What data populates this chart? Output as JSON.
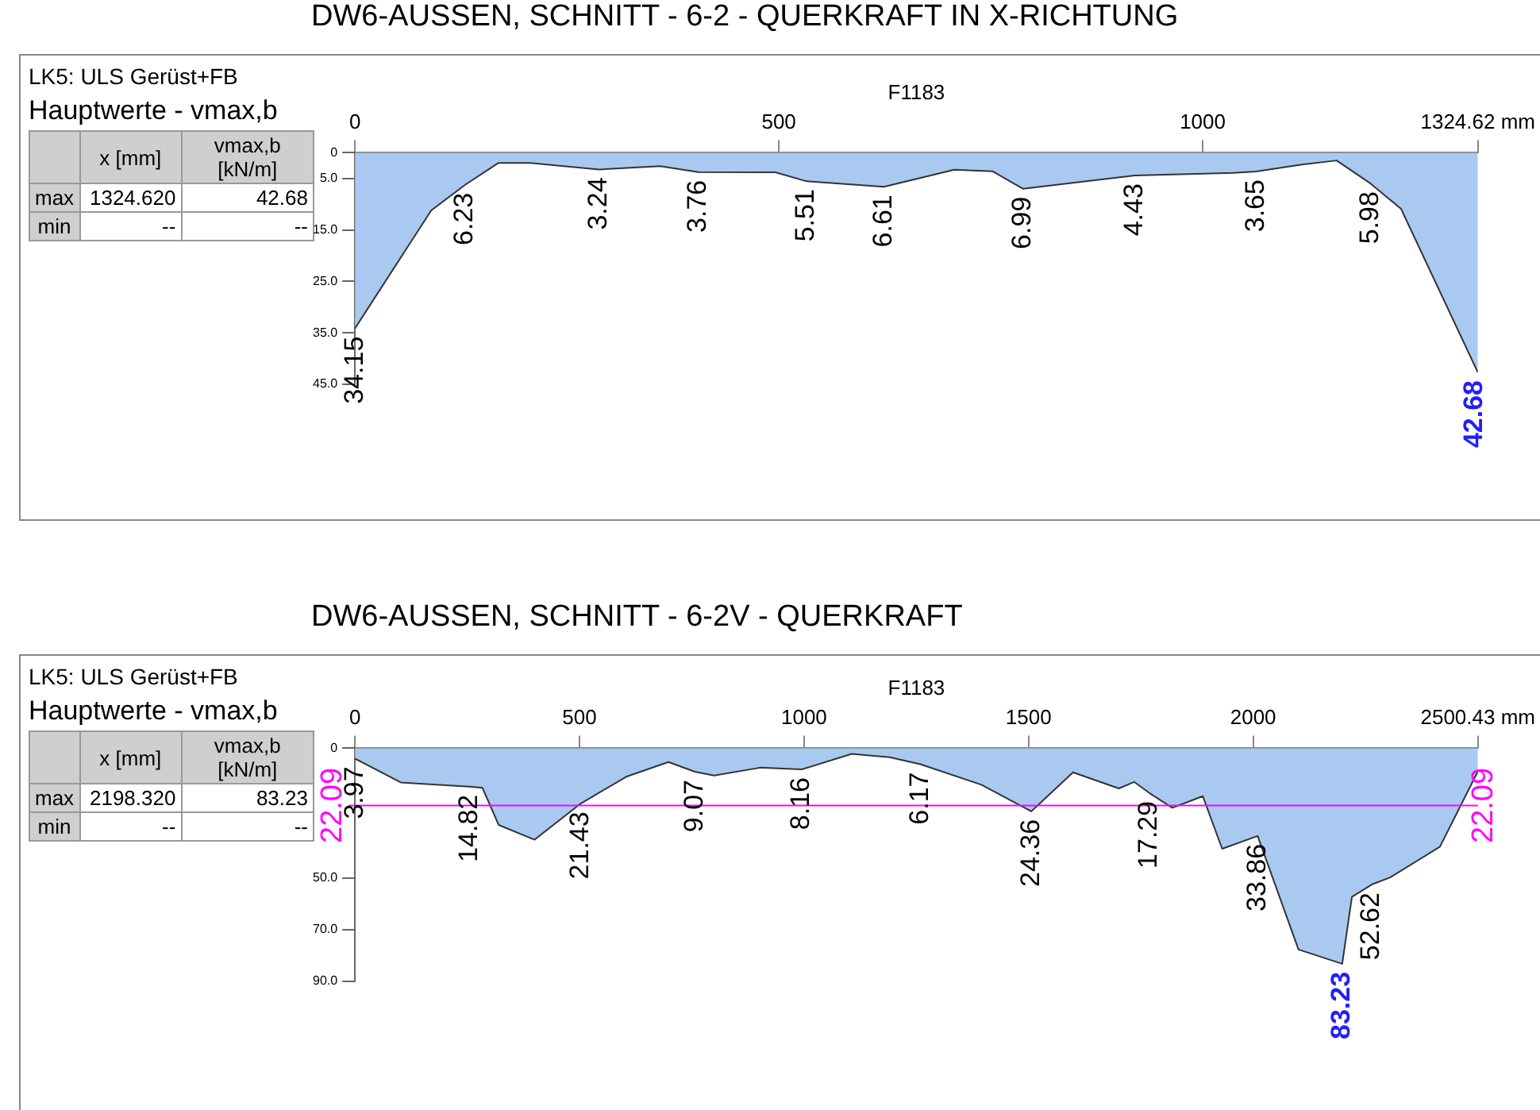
{
  "chart_data": [
    {
      "type": "area",
      "title": "DW6-AUSSEN, SCHNITT - 6-2 - QUERKRAFT IN X-RICHTUNG",
      "xlabel": "F1183",
      "color": "#a9c9f0",
      "annotations": [
        "LK5: ULS Gerüst+FB",
        "Hauptwerte - vmax,b",
        "x [mm]",
        "vmax,b [kN/m]",
        "max",
        "1324.620",
        "42.68",
        "min",
        "--",
        "--"
      ],
      "x": [
        0,
        90,
        130,
        169,
        207,
        288,
        360,
        405,
        496,
        532,
        624,
        707,
        752,
        788,
        920,
        1036,
        1063,
        1117,
        1158,
        1198,
        1234,
        1324.62
      ],
      "values": [
        34.15,
        11.2,
        6.23,
        2.0,
        2.0,
        3.24,
        2.6,
        3.76,
        3.8,
        5.51,
        6.61,
        3.3,
        3.6,
        6.99,
        4.43,
        3.9,
        3.65,
        2.3,
        1.5,
        5.98,
        10.9,
        42.68
      ],
      "value_labels": [
        "34.15",
        null,
        "6.23",
        null,
        null,
        "3.24",
        null,
        "3.76",
        null,
        "5.51",
        "6.61",
        null,
        null,
        "6.99",
        "4.43",
        null,
        "3.65",
        null,
        null,
        "5.98",
        null,
        "42.68"
      ],
      "xlim": [
        0,
        1324.62
      ],
      "xticks": [
        0,
        500,
        1000,
        {
          "value": 1324.62,
          "label": "1324.62 mm"
        }
      ],
      "ylim": [
        45,
        0
      ],
      "yticks": [
        0,
        {
          "value": 5,
          "label": "5.0"
        },
        {
          "value": 15,
          "label": "15.0"
        },
        {
          "value": 25,
          "label": "25.0"
        },
        {
          "value": 35,
          "label": "35.0"
        },
        {
          "value": 45,
          "label": "45.0"
        }
      ]
    },
    {
      "type": "area",
      "title": "DW6-AUSSEN, SCHNITT - 6-2V - QUERKRAFT",
      "xlabel": "F1183",
      "color": "#a9c9f0",
      "annotations": [
        "LK5: ULS Gerüst+FB",
        "Hauptwerte - vmax,b",
        "x [mm]",
        "vmax,b [kN/m]",
        "max",
        "2198.320",
        "83.23",
        "min",
        "--",
        "--"
      ],
      "x": [
        0,
        102,
        255,
        284,
        320,
        400,
        502,
        604,
        698,
        757,
        800,
        902,
        995,
        1106,
        1191,
        1259,
        1395,
        1506,
        1599,
        1701,
        1735,
        1769,
        1820,
        1888,
        1931,
        2010,
        2101,
        2198.32,
        2220,
        2264,
        2305,
        2416,
        2500.43
      ],
      "values": [
        3.97,
        13.2,
        14.82,
        15.3,
        29.6,
        35.3,
        21.43,
        11,
        5.3,
        9.07,
        10.5,
        7.5,
        8.16,
        2.2,
        3.5,
        6.17,
        14.1,
        24.36,
        9.3,
        15.5,
        13,
        17.29,
        23,
        18.5,
        38.8,
        33.86,
        77.7,
        83.23,
        57.4,
        52.62,
        49.9,
        38,
        8.9
      ],
      "value_labels": [
        "3.97",
        null,
        "14.82",
        null,
        null,
        null,
        "21.43",
        null,
        null,
        "9.07",
        null,
        null,
        "8.16",
        null,
        null,
        "6.17",
        null,
        "24.36",
        null,
        null,
        null,
        "17.29",
        null,
        null,
        null,
        "33.86",
        null,
        "83.23",
        null,
        "52.62",
        null,
        null,
        null
      ],
      "xlim": [
        0,
        2500.43
      ],
      "xticks": [
        0,
        500,
        1000,
        1500,
        2000,
        {
          "value": 2500.43,
          "label": "2500.43 mm"
        }
      ],
      "ylim": [
        90,
        0
      ],
      "yticks": [
        0,
        {
          "value": 50,
          "label": "50.0"
        },
        {
          "value": 70,
          "label": "70.0"
        },
        {
          "value": 90,
          "label": "90.0"
        }
      ],
      "ref_lines": [
        {
          "axis": "y",
          "value": 22.09,
          "label": "22.09",
          "color": "#ff00ff"
        }
      ]
    }
  ]
}
